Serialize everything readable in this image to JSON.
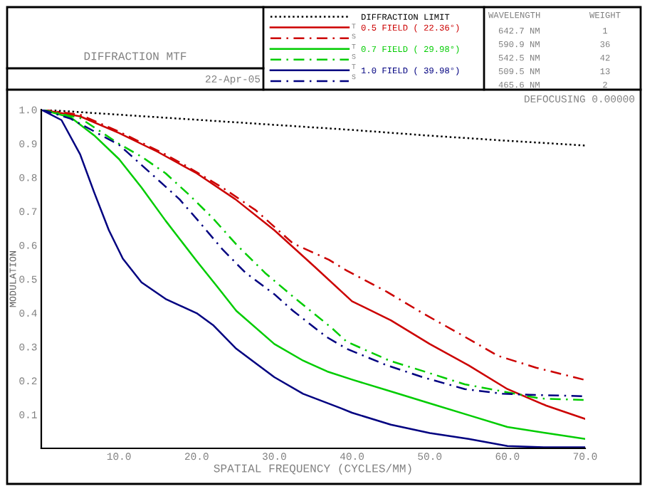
{
  "chart_data": {
    "type": "line",
    "title": "DIFFRACTION MTF",
    "xlabel": "SPATIAL FREQUENCY (CYCLES/MM)",
    "ylabel": "MODULATION",
    "xlim": [
      0,
      70
    ],
    "xticks": [
      {
        "value": 10,
        "label": "10.0"
      },
      {
        "value": 20,
        "label": "20.0"
      },
      {
        "value": 30,
        "label": "30.0"
      },
      {
        "value": 40,
        "label": "40.0"
      },
      {
        "value": 50,
        "label": "50.0"
      },
      {
        "value": 60,
        "label": "60.0"
      },
      {
        "value": 70,
        "label": "70.0"
      }
    ],
    "ylim": [
      0,
      1
    ],
    "yticks": [
      {
        "value": 0.1,
        "label": "0.1"
      },
      {
        "value": 0.2,
        "label": "0.2"
      },
      {
        "value": 0.3,
        "label": "0.3"
      },
      {
        "value": 0.4,
        "label": "0.4"
      },
      {
        "value": 0.5,
        "label": "0.5"
      },
      {
        "value": 0.6,
        "label": "0.6"
      },
      {
        "value": 0.7,
        "label": "0.7"
      },
      {
        "value": 0.8,
        "label": "0.8"
      },
      {
        "value": 0.9,
        "label": "0.9"
      },
      {
        "value": 1.0,
        "label": "1.0"
      }
    ],
    "grid": false,
    "legend": "top",
    "marker": "none",
    "series": [
      {
        "name": "DIFFRACTION LIMIT",
        "color": "#000000",
        "line_style": "dotted",
        "x": [
          0,
          10,
          20,
          30,
          40,
          50,
          60,
          70
        ],
        "values": [
          1.0,
          0.985,
          0.97,
          0.955,
          0.94,
          0.923,
          0.908,
          0.894
        ]
      },
      {
        "name": "0.5 FIELD ( 22.36°)",
        "color": "#cc0000",
        "line_style": "solid",
        "x": [
          0,
          5,
          10,
          15,
          20,
          25,
          30,
          35,
          40,
          45,
          50,
          55,
          60,
          65,
          70
        ],
        "values": [
          1.0,
          0.98,
          0.931,
          0.875,
          0.812,
          0.735,
          0.644,
          0.54,
          0.434,
          0.378,
          0.308,
          0.245,
          0.175,
          0.126,
          0.087
        ]
      },
      {
        "color": "#cc0000",
        "line_style": "dashed",
        "x": [
          0,
          5,
          10,
          15.7,
          18.4,
          23.3,
          27.6,
          32.4,
          37,
          39.3,
          44.5,
          49.1,
          54,
          58.8,
          63.7,
          69.8
        ],
        "values": [
          1.0,
          0.985,
          0.935,
          0.871,
          0.837,
          0.77,
          0.703,
          0.605,
          0.557,
          0.525,
          0.462,
          0.399,
          0.336,
          0.273,
          0.238,
          0.203
        ]
      },
      {
        "name": "0.7 FIELD ( 29.98°)",
        "color": "#00cc00",
        "line_style": "solid",
        "x": [
          0,
          3.8,
          6.8,
          10,
          12.9,
          16,
          20,
          22.7,
          25.1,
          30,
          33.7,
          36.8,
          40,
          45,
          50,
          55,
          60,
          65,
          70
        ],
        "values": [
          1.0,
          0.977,
          0.924,
          0.854,
          0.77,
          0.672,
          0.553,
          0.476,
          0.406,
          0.308,
          0.259,
          0.227,
          0.203,
          0.168,
          0.133,
          0.098,
          0.063,
          0.045,
          0.028
        ]
      },
      {
        "color": "#00cc00",
        "line_style": "dashed",
        "x": [
          0,
          5,
          10,
          12.9,
          16,
          19,
          22.1,
          25.1,
          28.8,
          32.4,
          37.3,
          39.3,
          44.8,
          49.7,
          54.5,
          59.4,
          64.3,
          69.8
        ],
        "values": [
          1.0,
          0.975,
          0.899,
          0.861,
          0.812,
          0.749,
          0.679,
          0.602,
          0.518,
          0.448,
          0.357,
          0.315,
          0.259,
          0.224,
          0.189,
          0.168,
          0.147,
          0.143
        ]
      },
      {
        "name": "1.0 FIELD ( 39.98°)",
        "color": "#000080",
        "line_style": "solid",
        "x": [
          0,
          2.6,
          5,
          6.8,
          8.7,
          10.5,
          12.9,
          16,
          20,
          22.1,
          25.1,
          30,
          33.7,
          38.5,
          40,
          45,
          50,
          55,
          60,
          65,
          70
        ],
        "values": [
          1.0,
          0.969,
          0.868,
          0.756,
          0.644,
          0.56,
          0.49,
          0.441,
          0.399,
          0.364,
          0.294,
          0.21,
          0.161,
          0.119,
          0.105,
          0.07,
          0.045,
          0.028,
          0.007,
          0.003,
          0.003
        ]
      },
      {
        "color": "#000080",
        "line_style": "dashed",
        "x": [
          0,
          3.8,
          10,
          14.1,
          17.8,
          20.2,
          23.3,
          26.3,
          30,
          32.4,
          36.7,
          39.3,
          44.5,
          49.1,
          54.5,
          59.4,
          64.3,
          69.8
        ],
        "values": [
          1.0,
          0.973,
          0.896,
          0.812,
          0.735,
          0.672,
          0.588,
          0.518,
          0.455,
          0.406,
          0.329,
          0.294,
          0.245,
          0.21,
          0.175,
          0.161,
          0.157,
          0.154
        ]
      }
    ],
    "annotations": [
      "T",
      "S",
      "22-Apr-05",
      "DEFOCUSING 0.00000",
      "WAVELENGTH",
      "WEIGHT",
      "642.7 NM",
      "1",
      "590.9 NM",
      "36",
      "542.5 NM",
      "42",
      "509.5 NM",
      "13",
      "465.6 NM",
      "2"
    ]
  }
}
